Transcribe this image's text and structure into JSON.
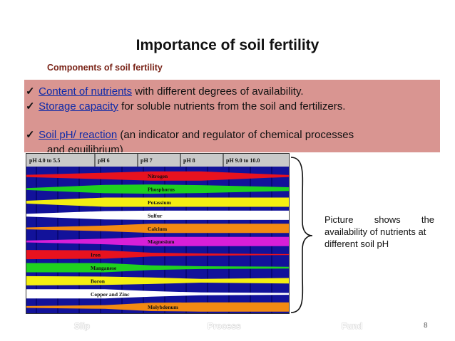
{
  "slide": {
    "title": "Importance of soil  fertility",
    "subtitle": "Components of soil fertility",
    "bullets": [
      {
        "lead": "Content of nutrients",
        "rest": " with different degrees of availability."
      },
      {
        "lead": "Storage capacity",
        "rest": " for soluble nutrients from the soil and fertilizers."
      },
      {
        "lead": "Soil pH/ reaction",
        "rest": " (an indicator and regulator of chemical processes",
        "cont": "and equilibrium)"
      }
    ],
    "caption_words": [
      "Picture",
      "shows",
      "the"
    ],
    "caption_rest": "availability of nutrients at different soil pH",
    "page_number": "8",
    "ghost_labels": [
      "Slip",
      "Process",
      "Fund"
    ]
  },
  "figure": {
    "ph_labels": [
      "pH 4.0 to 5.5",
      "pH 6",
      "pH 7",
      "pH 8",
      "pH 9.0 to 10.0"
    ],
    "bands": [
      {
        "label": "Nitrogen",
        "color": "#e8121f"
      },
      {
        "label": "Phosphorus",
        "color": "#1fd11f"
      },
      {
        "label": "Potassium",
        "color": "#f4ee12"
      },
      {
        "label": "Sulfur",
        "color": "#ffffff"
      },
      {
        "label": "Calcium",
        "color": "#f28a12"
      },
      {
        "label": "Magnesium",
        "color": "#d81fd8"
      },
      {
        "label": "Iron",
        "color": "#e8121f"
      },
      {
        "label": "Manganese",
        "color": "#1fd11f"
      },
      {
        "label": "Boron",
        "color": "#f4ee12"
      },
      {
        "label": "Copper and Zinc",
        "color": "#ffffff"
      },
      {
        "label": "Molybdenum",
        "color": "#f28a12"
      }
    ]
  }
}
